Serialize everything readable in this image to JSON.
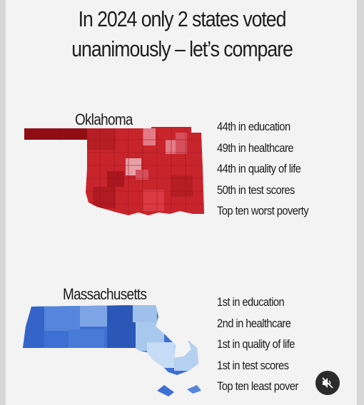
{
  "title": {
    "line1": "In 2024 only 2 states voted",
    "line2": "unanimously – let’s compare"
  },
  "oklahoma": {
    "name": "Oklahoma",
    "stats": [
      "44th in education",
      "49th in healthcare",
      "44th in quality of life",
      "50th in test scores",
      "Top ten worst poverty"
    ],
    "colors": {
      "base": "#c8242c",
      "dark": "#8e0e14",
      "light": "#e47a86"
    }
  },
  "massachusetts": {
    "name": "Massachusetts",
    "stats": [
      "1st in education",
      "2nd in healthcare",
      "1st in quality of life",
      "1st in test scores",
      "Top ten least pover"
    ],
    "colors": {
      "base": "#3e6fd2",
      "dark": "#2b57b8",
      "light": "#9fc0ea"
    }
  },
  "controls": {
    "mute_icon": "muted-speaker-icon"
  }
}
